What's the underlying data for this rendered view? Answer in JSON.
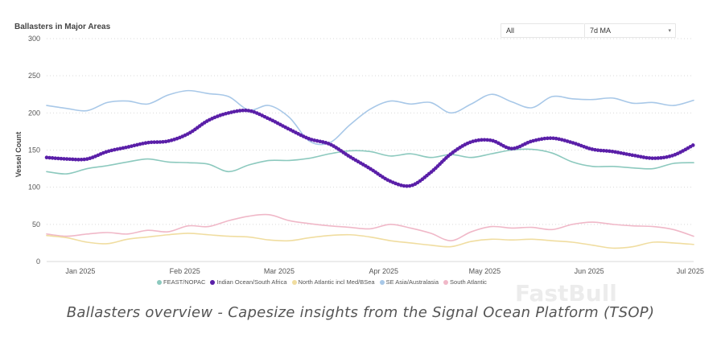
{
  "watermark": "FastBull",
  "caption": "Ballasters overview - Capesize insights from the Signal Ocean Platform (TSOP)",
  "controls": {
    "range": "All",
    "moving_average": "7d MA"
  },
  "chart_data": {
    "type": "line",
    "title": "Ballasters in Major Areas",
    "xlabel": "",
    "ylabel": "Vessel Count",
    "ylim": [
      0,
      300
    ],
    "yticks": [
      0,
      50,
      100,
      150,
      200,
      250,
      300
    ],
    "grid": "horizontal dotted",
    "legend_position": "bottom",
    "x_tick_labels": [
      "Jan 2025",
      "Feb 2025",
      "Mar 2025",
      "Apr 2025",
      "May 2025",
      "Jun 2025",
      "Jul 2025"
    ],
    "x_tick_days": [
      10,
      41,
      69,
      100,
      130,
      161,
      191
    ],
    "x_range_days": [
      0,
      192
    ],
    "x": [
      0,
      6,
      12,
      18,
      24,
      30,
      36,
      42,
      48,
      54,
      60,
      66,
      72,
      78,
      84,
      90,
      96,
      102,
      108,
      114,
      120,
      126,
      132,
      138,
      144,
      150,
      156,
      162,
      168,
      174,
      180,
      186,
      192
    ],
    "series": [
      {
        "name": "FEAST/NOPAC",
        "color": "#8cc9be",
        "values": [
          121,
          118,
          125,
          129,
          134,
          138,
          134,
          133,
          131,
          121,
          130,
          136,
          136,
          139,
          145,
          149,
          148,
          142,
          145,
          140,
          144,
          140,
          145,
          150,
          151,
          146,
          134,
          128,
          128,
          126,
          125,
          132,
          133
        ]
      },
      {
        "name": "Indian Ocean/South Africa",
        "color": "#5a1fa8",
        "values": [
          140,
          138,
          138,
          148,
          154,
          160,
          162,
          172,
          190,
          200,
          203,
          192,
          178,
          165,
          158,
          141,
          125,
          108,
          102,
          120,
          145,
          161,
          163,
          152,
          162,
          166,
          160,
          151,
          148,
          143,
          139,
          143,
          157
        ]
      },
      {
        "name": "North Atlantic incl Med/BSea",
        "color": "#f0dda0",
        "values": [
          35,
          32,
          26,
          24,
          30,
          33,
          36,
          38,
          36,
          34,
          33,
          29,
          28,
          32,
          35,
          36,
          33,
          28,
          25,
          22,
          20,
          27,
          30,
          29,
          30,
          28,
          26,
          22,
          18,
          20,
          26,
          25,
          23
        ]
      },
      {
        "name": "SE Asia/Australasia",
        "color": "#a8c8e8",
        "values": [
          210,
          206,
          203,
          214,
          216,
          212,
          224,
          230,
          226,
          222,
          204,
          210,
          194,
          162,
          160,
          184,
          205,
          216,
          212,
          214,
          200,
          212,
          225,
          215,
          207,
          222,
          219,
          218,
          220,
          213,
          214,
          210,
          217
        ]
      },
      {
        "name": "South Atlantic",
        "color": "#f0b8c8",
        "values": [
          37,
          34,
          37,
          39,
          37,
          42,
          40,
          48,
          47,
          55,
          61,
          63,
          55,
          51,
          48,
          46,
          44,
          50,
          45,
          38,
          28,
          40,
          47,
          45,
          46,
          43,
          50,
          53,
          50,
          48,
          47,
          43,
          34
        ]
      }
    ]
  }
}
